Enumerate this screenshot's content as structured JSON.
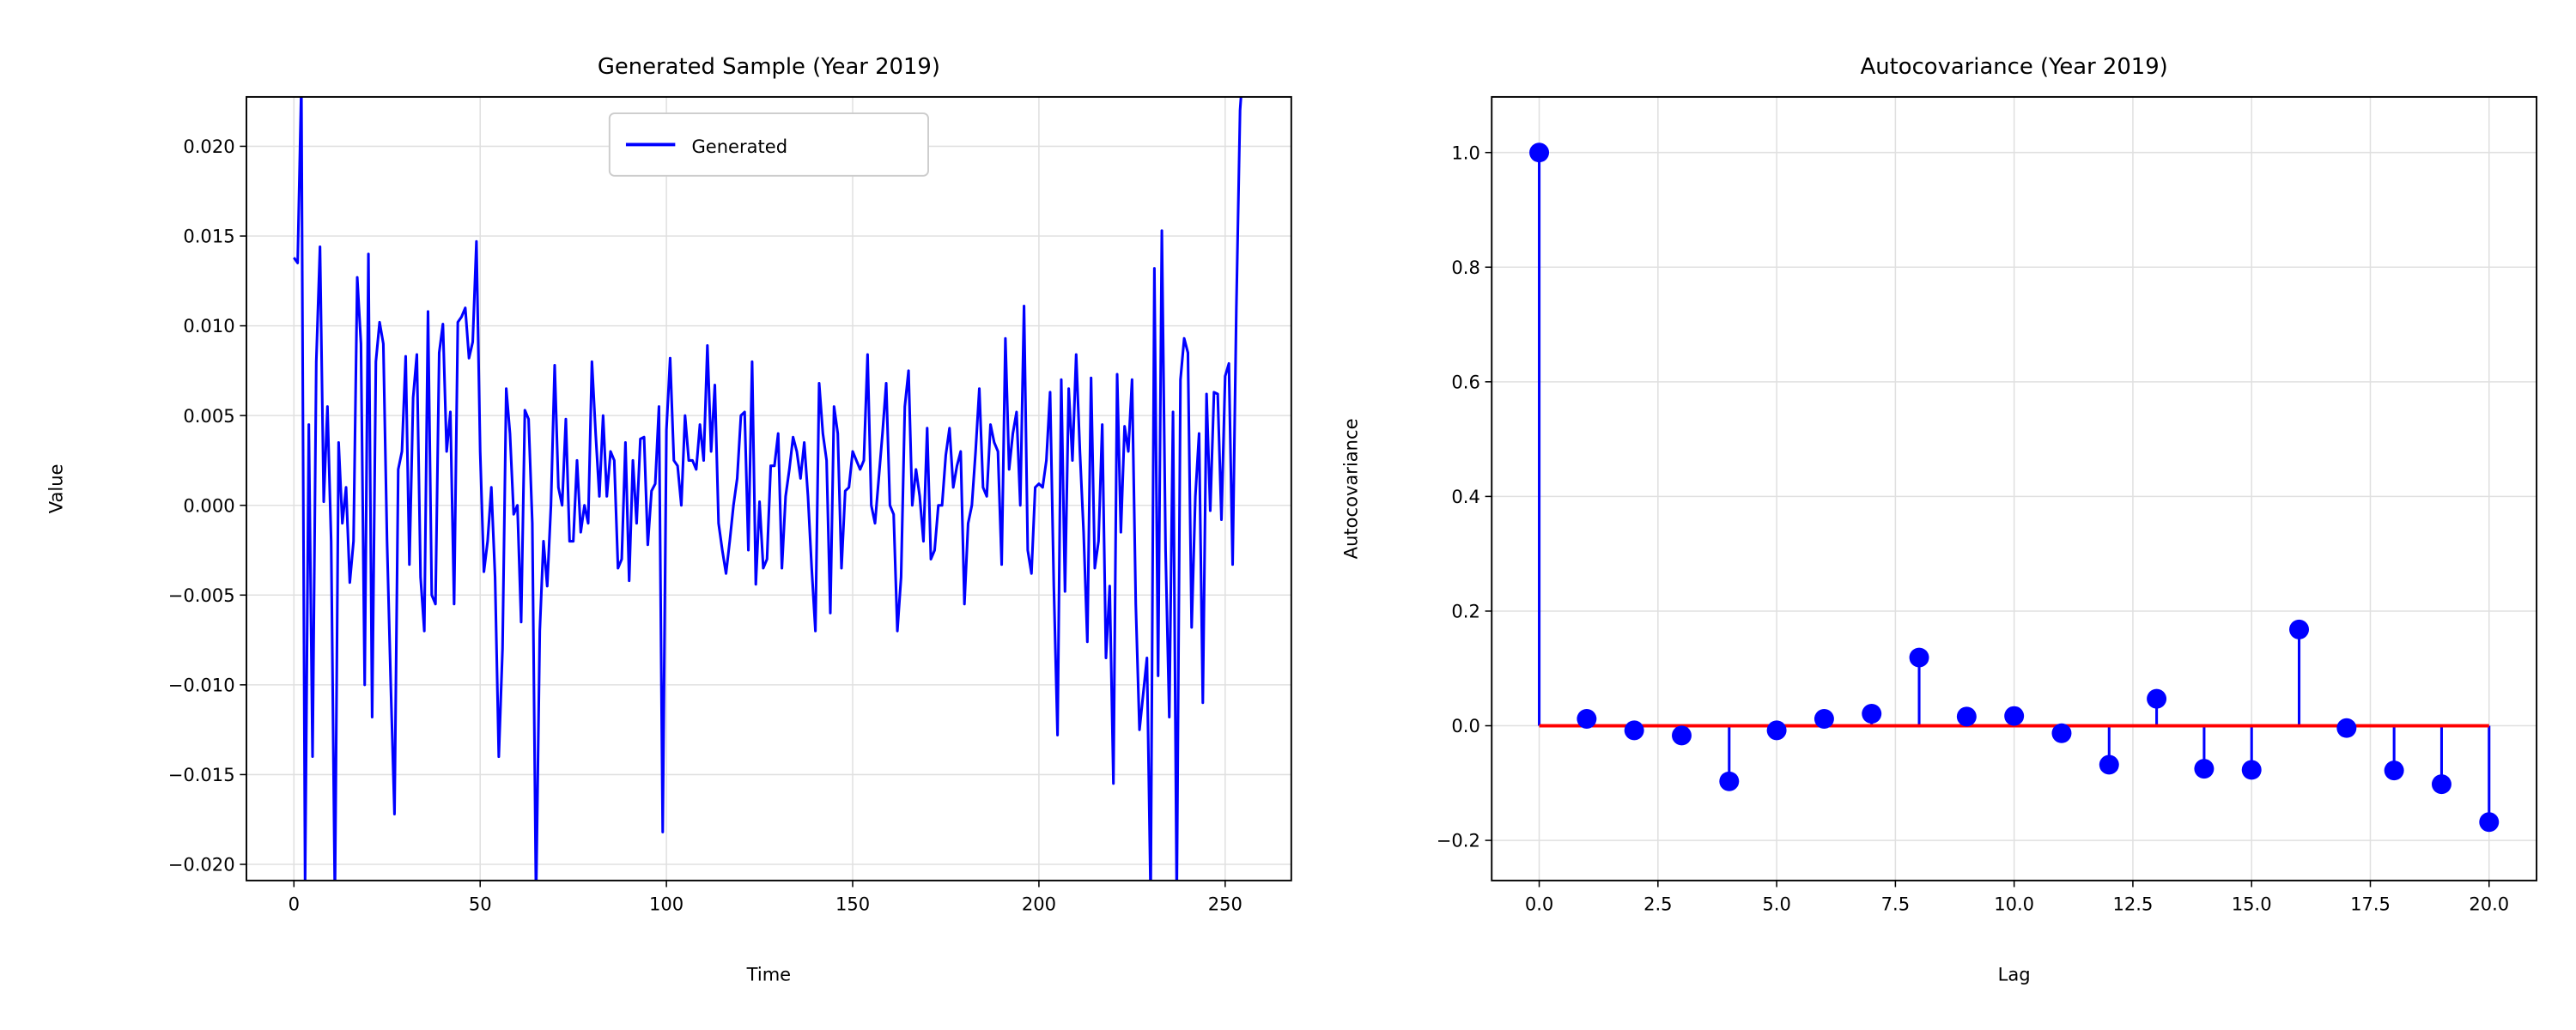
{
  "chart_data": [
    {
      "type": "line",
      "title": "Generated Sample (Year 2019)",
      "xlabel": "Time",
      "ylabel": "Value",
      "legend": "upper center",
      "grid": true,
      "xlim": [
        -12.75,
        267.75
      ],
      "ylim": [
        -0.0209,
        0.02275
      ],
      "xticks": [
        0,
        50,
        100,
        150,
        200,
        250
      ],
      "yticks": [
        {
          "value": 0.02,
          "label": "0.020"
        },
        {
          "value": 0.015,
          "label": "0.015"
        },
        {
          "value": 0.01,
          "label": "0.010"
        },
        {
          "value": 0.005,
          "label": "0.005"
        },
        {
          "value": 0,
          "label": "0.000"
        },
        {
          "value": -0.005,
          "label": "−0.005"
        },
        {
          "value": -0.01,
          "label": "−0.010"
        },
        {
          "value": -0.015,
          "label": "−0.015"
        },
        {
          "value": -0.02,
          "label": "−0.020"
        }
      ],
      "x": [
        0,
        1,
        2,
        3,
        4,
        5,
        6,
        7,
        8,
        9,
        10,
        11,
        12,
        13,
        14,
        15,
        16,
        17,
        18,
        19,
        20,
        21,
        22,
        23,
        24,
        25,
        26,
        27,
        28,
        29,
        30,
        31,
        32,
        33,
        34,
        35,
        36,
        37,
        38,
        39,
        40,
        41,
        42,
        43,
        44,
        45,
        46,
        47,
        48,
        49,
        50,
        51,
        52,
        53,
        54,
        55,
        56,
        57,
        58,
        59,
        60,
        61,
        62,
        63,
        64,
        65,
        66,
        67,
        68,
        69,
        70,
        71,
        72,
        73,
        74,
        75,
        76,
        77,
        78,
        79,
        80,
        81,
        82,
        83,
        84,
        85,
        86,
        87,
        88,
        89,
        90,
        91,
        92,
        93,
        94,
        95,
        96,
        97,
        98,
        99,
        100,
        101,
        102,
        103,
        104,
        105,
        106,
        107,
        108,
        109,
        110,
        111,
        112,
        113,
        114,
        115,
        116,
        117,
        118,
        119,
        120,
        121,
        122,
        123,
        124,
        125,
        126,
        127,
        128,
        129,
        130,
        131,
        132,
        133,
        134,
        135,
        136,
        137,
        138,
        139,
        140,
        141,
        142,
        143,
        144,
        145,
        146,
        147,
        148,
        149,
        150,
        151,
        152,
        153,
        154,
        155,
        156,
        157,
        158,
        159,
        160,
        161,
        162,
        163,
        164,
        165,
        166,
        167,
        168,
        169,
        170,
        171,
        172,
        173,
        174,
        175,
        176,
        177,
        178,
        179,
        180,
        181,
        182,
        183,
        184,
        185,
        186,
        187,
        188,
        189,
        190,
        191,
        192,
        193,
        194,
        195,
        196,
        197,
        198,
        199,
        200,
        201,
        202,
        203,
        204,
        205,
        206,
        207,
        208,
        209,
        210,
        211,
        212,
        213,
        214,
        215,
        216,
        217,
        218,
        219,
        220,
        221,
        222,
        223,
        224,
        225,
        226,
        227,
        228,
        229,
        230,
        231,
        232,
        233,
        234,
        235,
        236,
        237,
        238,
        239,
        240,
        241,
        242,
        243,
        244,
        245,
        246,
        247,
        248,
        249,
        250,
        251,
        252,
        253,
        254,
        255
      ],
      "series": [
        {
          "name": "Generated",
          "color": "#0000ff",
          "values": [
            0.0138,
            0.0135,
            0.0235,
            -0.021,
            0.0045,
            -0.014,
            0.008,
            0.0144,
            0.0002,
            0.0055,
            -0.002,
            -0.022,
            0.0035,
            -0.001,
            0.001,
            -0.0043,
            -0.002,
            0.0127,
            0.009,
            -0.01,
            0.014,
            -0.0118,
            0.008,
            0.0102,
            0.009,
            -0.002,
            -0.01,
            -0.0172,
            0.002,
            0.003,
            0.0083,
            -0.0033,
            0.006,
            0.0084,
            -0.004,
            -0.007,
            0.0108,
            -0.005,
            -0.0055,
            0.0085,
            0.0101,
            0.003,
            0.0052,
            -0.0055,
            0.0102,
            0.0105,
            0.011,
            0.0082,
            0.0091,
            0.0147,
            0.003,
            -0.0037,
            -0.002,
            0.001,
            -0.004,
            -0.014,
            -0.008,
            0.0065,
            0.004,
            -0.0005,
            0,
            -0.0065,
            0.0053,
            0.0048,
            -0.001,
            -0.022,
            -0.007,
            -0.002,
            -0.0045,
            0,
            0.0078,
            0.001,
            0,
            0.0048,
            -0.002,
            -0.002,
            0.0025,
            -0.0015,
            0,
            -0.001,
            0.008,
            0.004,
            0.0005,
            0.005,
            0.0005,
            0.003,
            0.0025,
            -0.0035,
            -0.003,
            0.0035,
            -0.0042,
            0.0025,
            -0.001,
            0.0037,
            0.0038,
            -0.0022,
            0.0008,
            0.0012,
            0.0055,
            -0.0182,
            0.0042,
            0.0082,
            0.0025,
            0.0022,
            0,
            0.005,
            0.0025,
            0.0025,
            0.002,
            0.0045,
            0.0025,
            0.0089,
            0.003,
            0.0067,
            -0.001,
            -0.0025,
            -0.0038,
            -0.002,
            0,
            0.0015,
            0.005,
            0.0052,
            -0.0025,
            0.008,
            -0.0044,
            0.0002,
            -0.0035,
            -0.003,
            0.0022,
            0.0022,
            0.004,
            -0.0035,
            0.0005,
            0.002,
            0.0038,
            0.003,
            0.0015,
            0.0035,
            0.0005,
            -0.0035,
            -0.007,
            0.0068,
            0.004,
            0.0025,
            -0.006,
            0.0055,
            0.004,
            -0.0035,
            0.0008,
            0.001,
            0.003,
            0.0025,
            0.002,
            0.0025,
            0.0084,
            0,
            -0.001,
            0.0015,
            0.004,
            0.0068,
            0,
            -0.0005,
            -0.007,
            -0.004,
            0.0055,
            0.0075,
            0,
            0.002,
            0.0005,
            -0.002,
            0.0043,
            -0.003,
            -0.0025,
            0,
            0,
            0.0028,
            0.0043,
            0.001,
            0.0022,
            0.003,
            -0.0055,
            -0.001,
            0,
            0.003,
            0.0065,
            0.001,
            0.0005,
            0.0045,
            0.0035,
            0.003,
            -0.0033,
            0.0093,
            0.002,
            0.004,
            0.0052,
            0,
            0.0111,
            -0.0025,
            -0.0038,
            0.001,
            0.0012,
            0.001,
            0.0025,
            0.0063,
            -0.0045,
            -0.0128,
            0.007,
            -0.0048,
            0.0065,
            0.0025,
            0.0084,
            0.003,
            -0.0015,
            -0.0076,
            0.0071,
            -0.0035,
            -0.002,
            0.0045,
            -0.0085,
            -0.0045,
            -0.0155,
            0.0073,
            -0.0015,
            0.0044,
            0.003,
            0.007,
            -0.0055,
            -0.0125,
            -0.0105,
            -0.0085,
            -0.022,
            0.0132,
            -0.0095,
            0.0153,
            -0.0025,
            -0.0118,
            0.0052,
            -0.022,
            0.007,
            0.0093,
            0.0085,
            -0.0068,
            0.0005,
            0.004,
            -0.011,
            0.0062,
            -0.0003,
            0.0063,
            0.0062,
            -0.0008,
            0.0072,
            0.0079,
            -0.0033,
            0.011,
            0.022,
            0.025
          ]
        }
      ]
    },
    {
      "type": "stem",
      "title": "Autocovariance (Year 2019)",
      "xlabel": "Lag",
      "ylabel": "Autocovariance",
      "grid": true,
      "xlim": [
        -1,
        21
      ],
      "ylim": [
        -0.27,
        1.097
      ],
      "xticks": [
        {
          "value": 0,
          "label": "0.0"
        },
        {
          "value": 2.5,
          "label": "2.5"
        },
        {
          "value": 5,
          "label": "5.0"
        },
        {
          "value": 7.5,
          "label": "7.5"
        },
        {
          "value": 10,
          "label": "10.0"
        },
        {
          "value": 12.5,
          "label": "12.5"
        },
        {
          "value": 15,
          "label": "15.0"
        },
        {
          "value": 17.5,
          "label": "17.5"
        },
        {
          "value": 20,
          "label": "20.0"
        }
      ],
      "yticks": [
        {
          "value": 1,
          "label": "1.0"
        },
        {
          "value": 0.8,
          "label": "0.8"
        },
        {
          "value": 0.6,
          "label": "0.6"
        },
        {
          "value": 0.4,
          "label": "0.4"
        },
        {
          "value": 0.2,
          "label": "0.2"
        },
        {
          "value": 0,
          "label": "0.0"
        },
        {
          "value": -0.2,
          "label": "−0.2"
        }
      ],
      "x": [
        0,
        1,
        2,
        3,
        4,
        5,
        6,
        7,
        8,
        9,
        10,
        11,
        12,
        13,
        14,
        15,
        16,
        17,
        18,
        19,
        20
      ],
      "values": [
        1.0,
        0.012,
        -0.008,
        -0.017,
        -0.097,
        -0.008,
        0.012,
        0.021,
        0.119,
        0.016,
        0.017,
        -0.013,
        -0.068,
        0.047,
        -0.075,
        -0.077,
        0.168,
        -0.004,
        -0.078,
        -0.102,
        -0.168
      ],
      "color": "#0000ff",
      "baseline_color": "#ff0000"
    }
  ]
}
